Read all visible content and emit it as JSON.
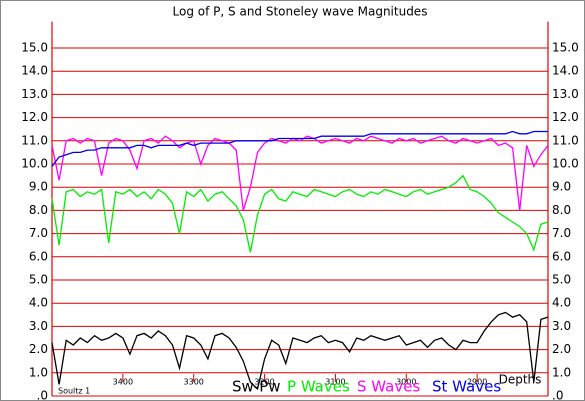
{
  "chart_data": {
    "type": "line",
    "title": "Log of P, S and Stoneley wave Magnitudes",
    "well": "Soultz 1",
    "xlabel": "Depths",
    "x": [
      3500,
      3490,
      3480,
      3470,
      3460,
      3450,
      3440,
      3430,
      3420,
      3410,
      3400,
      3390,
      3380,
      3370,
      3360,
      3350,
      3340,
      3330,
      3320,
      3310,
      3300,
      3290,
      3280,
      3270,
      3260,
      3250,
      3240,
      3230,
      3220,
      3210,
      3200,
      3190,
      3180,
      3170,
      3160,
      3150,
      3140,
      3130,
      3120,
      3110,
      3100,
      3090,
      3080,
      3070,
      3060,
      3050,
      3040,
      3030,
      3020,
      3010,
      3000,
      2990,
      2980,
      2970,
      2960,
      2950,
      2940,
      2930,
      2920,
      2910,
      2900,
      2890,
      2880,
      2870,
      2860,
      2850,
      2840,
      2830,
      2820,
      2810,
      2800
    ],
    "xlim": [
      3500,
      2800
    ],
    "xticks": [
      3400,
      3300,
      3200,
      3100,
      3000,
      2900
    ],
    "ylim": [
      0,
      16
    ],
    "yticks": [
      {
        "value": 0,
        "label": ".0"
      },
      {
        "value": 1,
        "label": "1.0"
      },
      {
        "value": 2,
        "label": "2.0"
      },
      {
        "value": 3,
        "label": "3.0"
      },
      {
        "value": 4,
        "label": "4.0"
      },
      {
        "value": 5,
        "label": "5.0"
      },
      {
        "value": 6,
        "label": "6.0"
      },
      {
        "value": 7,
        "label": "7.0"
      },
      {
        "value": 8,
        "label": "8.0"
      },
      {
        "value": 9,
        "label": "9.0"
      },
      {
        "value": 10,
        "label": "10.0"
      },
      {
        "value": 11,
        "label": "11.0"
      },
      {
        "value": 12,
        "label": "12.0"
      },
      {
        "value": 13,
        "label": "13.0"
      },
      {
        "value": 14,
        "label": "14.0"
      },
      {
        "value": 15,
        "label": "15.0"
      }
    ],
    "grid": true,
    "series": [
      {
        "name": "Sw-Pw",
        "color": "#000000",
        "values": [
          2.3,
          0.5,
          2.4,
          2.2,
          2.5,
          2.3,
          2.6,
          2.4,
          2.5,
          2.7,
          2.5,
          1.8,
          2.6,
          2.7,
          2.5,
          2.8,
          2.6,
          2.2,
          1.2,
          2.6,
          2.5,
          2.2,
          1.6,
          2.6,
          2.7,
          2.5,
          2.1,
          1.5,
          0.6,
          0.3,
          1.6,
          2.4,
          2.2,
          1.4,
          2.5,
          2.4,
          2.3,
          2.5,
          2.6,
          2.3,
          2.4,
          2.3,
          1.9,
          2.5,
          2.4,
          2.6,
          2.5,
          2.4,
          2.5,
          2.6,
          2.2,
          2.3,
          2.4,
          2.1,
          2.4,
          2.5,
          2.2,
          2.0,
          2.4,
          2.3,
          2.3,
          2.8,
          3.2,
          3.5,
          3.6,
          3.4,
          3.5,
          3.2,
          0.6,
          3.3,
          3.4
        ]
      },
      {
        "name": "P Waves",
        "color": "#00ee00",
        "values": [
          8.5,
          6.5,
          8.8,
          8.9,
          8.6,
          8.8,
          8.7,
          8.9,
          6.6,
          8.8,
          8.7,
          8.9,
          8.6,
          8.8,
          8.5,
          8.9,
          8.7,
          8.3,
          7.0,
          8.8,
          8.6,
          8.9,
          8.4,
          8.7,
          8.8,
          8.5,
          8.2,
          7.6,
          6.2,
          7.8,
          8.7,
          8.9,
          8.5,
          8.4,
          8.8,
          8.7,
          8.6,
          8.9,
          8.8,
          8.7,
          8.6,
          8.8,
          8.9,
          8.7,
          8.6,
          8.8,
          8.7,
          8.9,
          8.8,
          8.7,
          8.6,
          8.8,
          8.9,
          8.7,
          8.8,
          8.9,
          9.0,
          9.2,
          9.5,
          8.9,
          8.8,
          8.6,
          8.3,
          7.9,
          7.7,
          7.5,
          7.3,
          7.0,
          6.3,
          7.4,
          7.5
        ]
      },
      {
        "name": "S Waves",
        "color": "#ff00ff",
        "values": [
          10.8,
          9.3,
          11.0,
          11.1,
          10.9,
          11.1,
          11.0,
          9.5,
          10.9,
          11.1,
          11.0,
          10.6,
          9.8,
          11.0,
          11.1,
          10.9,
          11.2,
          11.0,
          10.7,
          10.9,
          11.0,
          10.0,
          10.8,
          11.1,
          11.0,
          10.9,
          10.6,
          8.0,
          9.0,
          10.5,
          10.9,
          11.1,
          11.0,
          10.9,
          11.1,
          11.0,
          11.2,
          11.1,
          10.9,
          11.0,
          11.1,
          11.0,
          10.9,
          11.1,
          11.0,
          11.2,
          11.1,
          11.0,
          10.9,
          11.1,
          11.0,
          11.1,
          10.9,
          11.0,
          11.1,
          11.2,
          11.0,
          10.9,
          11.1,
          11.0,
          10.9,
          11.0,
          11.1,
          10.8,
          10.9,
          10.7,
          8.0,
          10.8,
          9.9,
          10.4,
          10.8
        ]
      },
      {
        "name": "St Waves",
        "color": "#0000ee",
        "values": [
          9.9,
          10.3,
          10.4,
          10.5,
          10.5,
          10.6,
          10.6,
          10.7,
          10.7,
          10.7,
          10.7,
          10.7,
          10.8,
          10.8,
          10.7,
          10.8,
          10.8,
          10.8,
          10.8,
          10.9,
          10.8,
          10.9,
          10.9,
          10.9,
          10.9,
          10.9,
          11.0,
          11.0,
          11.0,
          11.0,
          11.0,
          11.0,
          11.1,
          11.1,
          11.1,
          11.1,
          11.1,
          11.1,
          11.2,
          11.2,
          11.2,
          11.2,
          11.2,
          11.2,
          11.2,
          11.3,
          11.3,
          11.3,
          11.3,
          11.3,
          11.3,
          11.3,
          11.3,
          11.3,
          11.3,
          11.3,
          11.3,
          11.3,
          11.3,
          11.3,
          11.3,
          11.3,
          11.3,
          11.3,
          11.3,
          11.4,
          11.3,
          11.3,
          11.4,
          11.4,
          11.4
        ]
      }
    ]
  }
}
